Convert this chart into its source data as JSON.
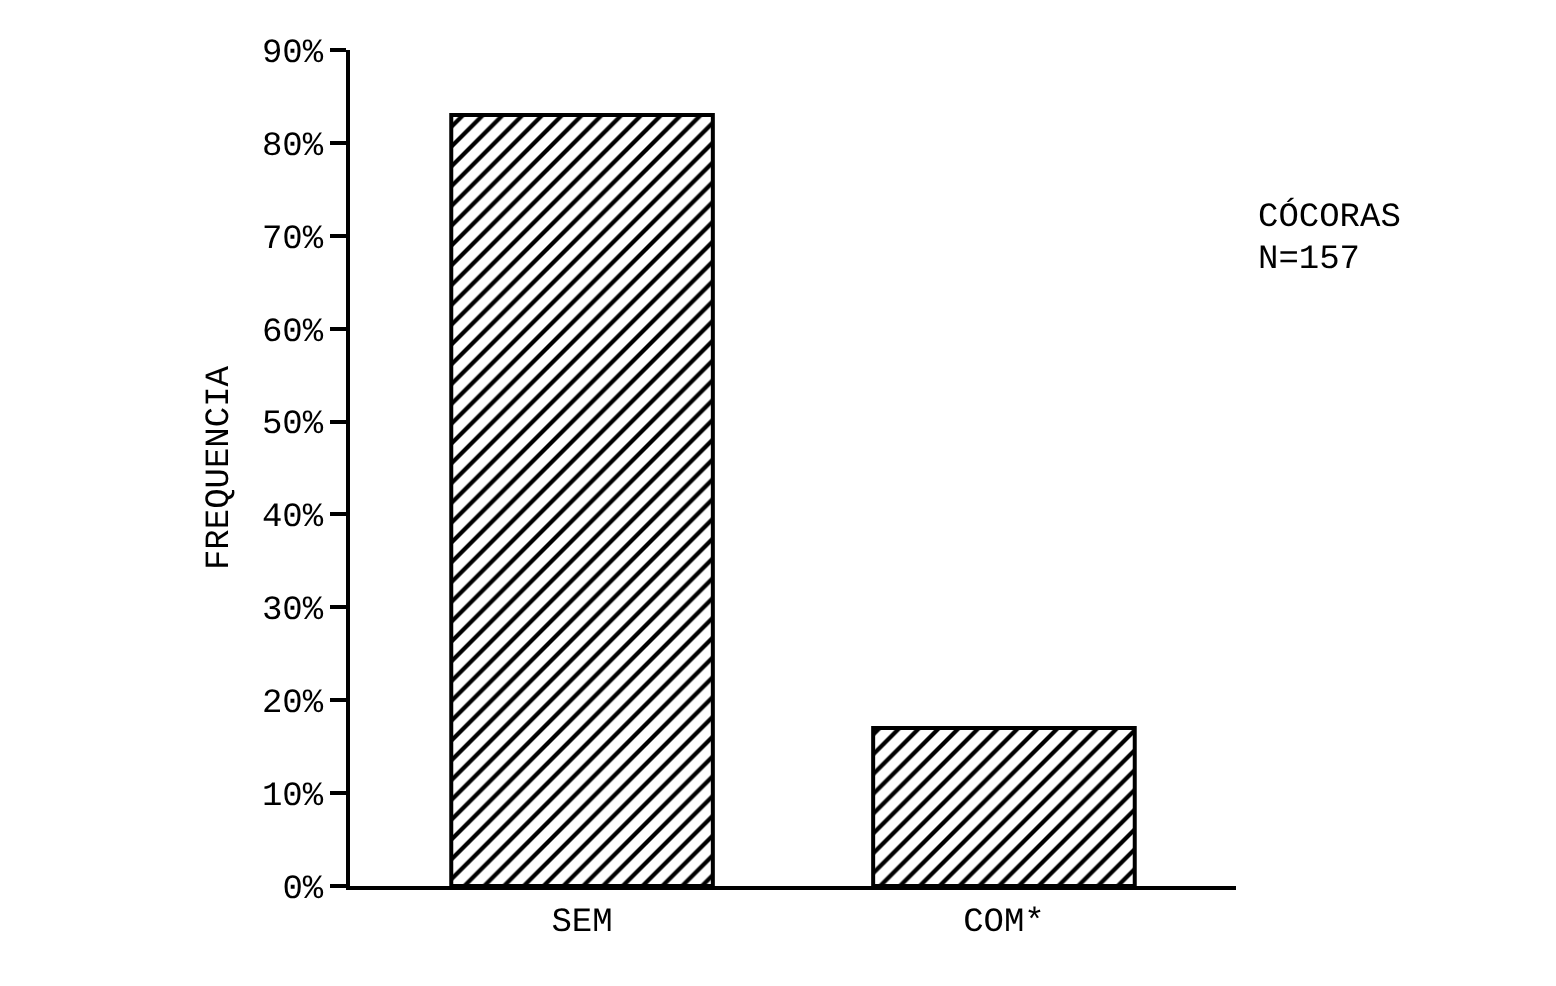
{
  "chart_data": {
    "type": "bar",
    "ylabel": "FREQUENCIA",
    "categories": [
      "SEM",
      "COM*"
    ],
    "values": [
      83,
      17
    ],
    "color": "#000000",
    "ylim": [
      0,
      90
    ],
    "yticks": [
      {
        "value": 0,
        "label": "0%"
      },
      {
        "value": 10,
        "label": "10%"
      },
      {
        "value": 20,
        "label": "20%"
      },
      {
        "value": 30,
        "label": "30%"
      },
      {
        "value": 40,
        "label": "40%"
      },
      {
        "value": 50,
        "label": "50%"
      },
      {
        "value": 60,
        "label": "60%"
      },
      {
        "value": 70,
        "label": "70%"
      },
      {
        "value": 80,
        "label": "80%"
      },
      {
        "value": 90,
        "label": "90%"
      }
    ],
    "grid": false,
    "annotations": [
      "CÓCORAS",
      "N=157"
    ]
  }
}
